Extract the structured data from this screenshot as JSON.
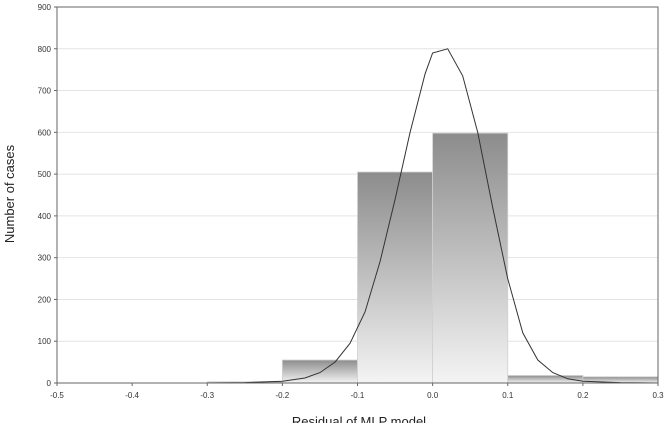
{
  "chart_data": {
    "type": "bar",
    "title": "",
    "xlabel": "Residual of MLP model",
    "ylabel": "Number of cases",
    "xlim": [
      -0.5,
      0.3
    ],
    "ylim": [
      0,
      900
    ],
    "x_ticks": [
      "-0.5",
      "-0.4",
      "-0.3",
      "-0.2",
      "-0.1",
      "0.0",
      "0.1",
      "0.2",
      "0.3"
    ],
    "y_ticks": [
      "0",
      "100",
      "200",
      "300",
      "400",
      "500",
      "600",
      "700",
      "800",
      "900"
    ],
    "grid": true,
    "bins": [
      {
        "x0": -0.3,
        "x1": -0.2,
        "value": 3
      },
      {
        "x0": -0.2,
        "x1": -0.1,
        "value": 55
      },
      {
        "x0": -0.1,
        "x1": 0.0,
        "value": 505
      },
      {
        "x0": 0.0,
        "x1": 0.1,
        "value": 598
      },
      {
        "x0": 0.1,
        "x1": 0.2,
        "value": 18
      },
      {
        "x0": 0.2,
        "x1": 0.3,
        "value": 15
      }
    ],
    "normal_curve": {
      "x": [
        -0.5,
        -0.3,
        -0.25,
        -0.2,
        -0.17,
        -0.15,
        -0.13,
        -0.11,
        -0.09,
        -0.07,
        -0.05,
        -0.03,
        -0.01,
        0.0,
        0.02,
        0.04,
        0.06,
        0.08,
        0.1,
        0.12,
        0.14,
        0.16,
        0.18,
        0.2,
        0.25,
        0.3
      ],
      "y": [
        0,
        0,
        1,
        4,
        12,
        25,
        50,
        95,
        170,
        290,
        440,
        600,
        740,
        790,
        800,
        735,
        600,
        420,
        250,
        120,
        55,
        25,
        10,
        4,
        1,
        0
      ]
    },
    "colors": {
      "bar_dark": "#8c8c8c",
      "bar_light": "#f4f4f4",
      "curve": "#333333",
      "grid": "#e4e4e4",
      "axis": "#666666"
    }
  }
}
